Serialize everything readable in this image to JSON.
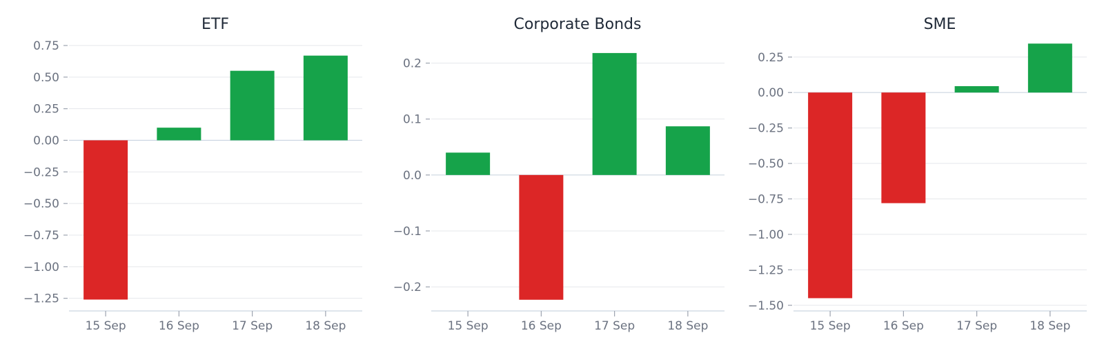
{
  "colors": {
    "positive": "#16a34a",
    "negative": "#dc2626",
    "grid": "#e5e7eb",
    "text": "#6b7280",
    "title": "#1f2937"
  },
  "chart_data": [
    {
      "type": "bar",
      "title": "ETF",
      "categories": [
        "15 Sep",
        "16 Sep",
        "17 Sep",
        "18 Sep"
      ],
      "values": [
        -1.26,
        0.1,
        0.55,
        0.67
      ],
      "yticks": [
        0.75,
        0.5,
        0.25,
        0.0,
        -0.25,
        -0.5,
        -0.75,
        -1.0,
        -1.25
      ],
      "ytick_labels": [
        "0.75",
        "0.50",
        "0.25",
        "0.00",
        "−0.25",
        "−0.50",
        "−0.75",
        "−1.00",
        "−1.25"
      ],
      "ylim": [
        -1.35,
        0.81
      ],
      "grid": true,
      "xlabel": "",
      "ylabel": ""
    },
    {
      "type": "bar",
      "title": "Corporate Bonds",
      "categories": [
        "15 Sep",
        "16 Sep",
        "17 Sep",
        "18 Sep"
      ],
      "values": [
        0.04,
        -0.223,
        0.218,
        0.087
      ],
      "yticks": [
        0.2,
        0.1,
        0.0,
        -0.1,
        -0.2
      ],
      "ytick_labels": [
        "0.2",
        "0.1",
        "0.0",
        "−0.1",
        "−0.2"
      ],
      "ylim": [
        -0.243,
        0.245
      ],
      "grid": true,
      "xlabel": "",
      "ylabel": ""
    },
    {
      "type": "bar",
      "title": "SME",
      "categories": [
        "15 Sep",
        "16 Sep",
        "17 Sep",
        "18 Sep"
      ],
      "values": [
        -1.45,
        -0.78,
        0.045,
        0.345
      ],
      "yticks": [
        0.25,
        0.0,
        -0.25,
        -0.5,
        -0.75,
        -1.0,
        -1.25,
        -1.5
      ],
      "ytick_labels": [
        "0.25",
        "0.00",
        "−0.25",
        "−0.50",
        "−0.75",
        "−1.00",
        "−1.25",
        "−1.50"
      ],
      "ylim": [
        -1.54,
        0.385
      ],
      "grid": true,
      "xlabel": "",
      "ylabel": ""
    }
  ]
}
